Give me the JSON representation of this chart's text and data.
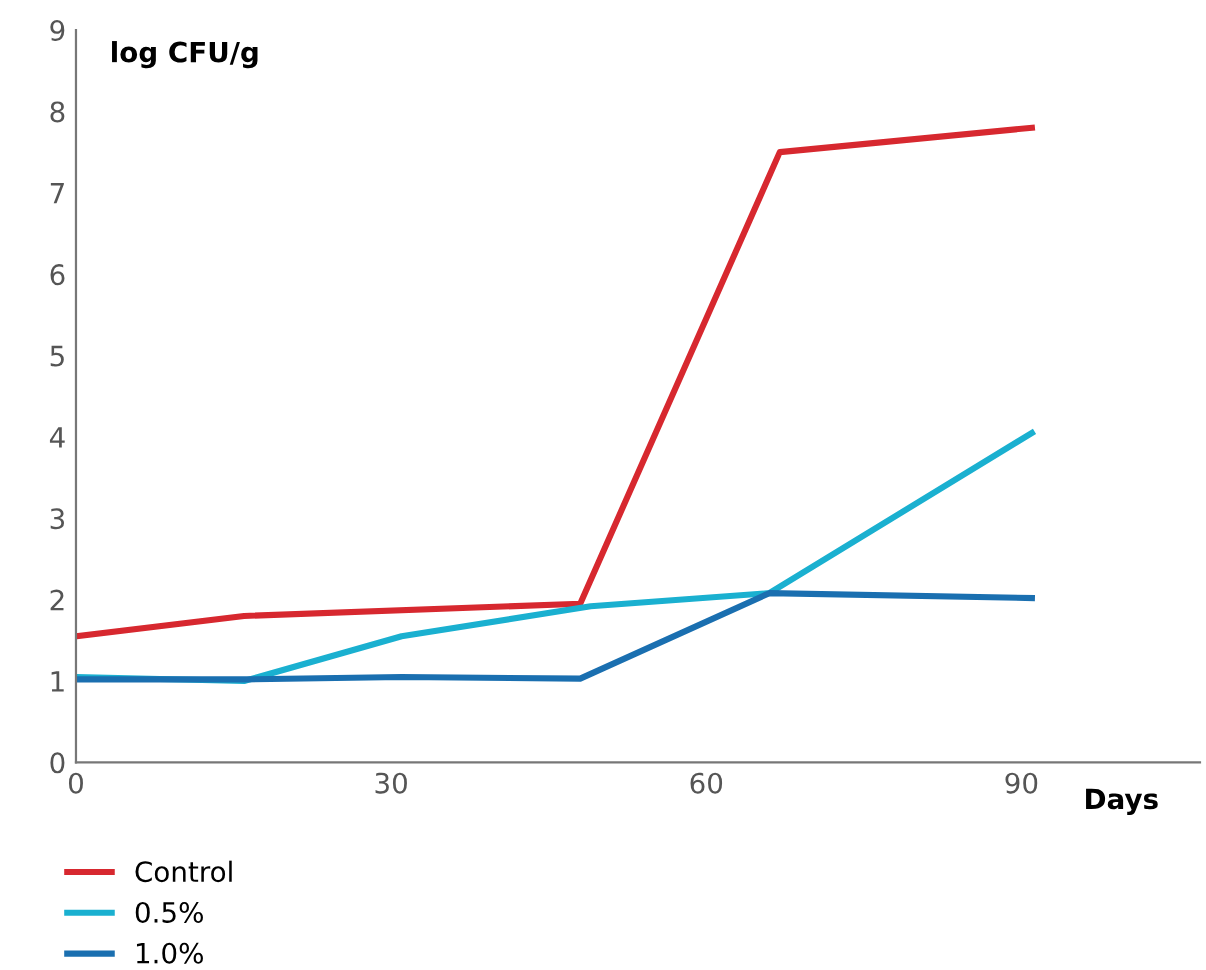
{
  "chart_data": {
    "type": "line",
    "xlabel": "Days",
    "ylabel": "log CFU/g",
    "xlim": [
      0,
      107
    ],
    "ylim": [
      0,
      9
    ],
    "xticks": [
      0,
      30,
      60,
      90
    ],
    "yticks": [
      0,
      1,
      2,
      3,
      4,
      5,
      6,
      7,
      8,
      9
    ],
    "grid": false,
    "legend": "bottom",
    "marker": "none",
    "line_style": "solid",
    "series": [
      {
        "name": "Control",
        "color": "#d7282f",
        "x": [
          0,
          16,
          48,
          67,
          91
        ],
        "values": [
          1.55,
          1.8,
          1.95,
          7.5,
          7.8
        ]
      },
      {
        "name": "0.5%",
        "color": "#1ab0d0",
        "x": [
          0,
          16,
          31,
          49,
          66,
          91
        ],
        "values": [
          1.05,
          1.0,
          1.55,
          1.92,
          2.08,
          4.05
        ]
      },
      {
        "name": "1.0%",
        "color": "#1a6fb0",
        "x": [
          0,
          16,
          31,
          48,
          66,
          91
        ],
        "values": [
          1.02,
          1.02,
          1.05,
          1.03,
          2.08,
          2.02
        ]
      }
    ]
  }
}
